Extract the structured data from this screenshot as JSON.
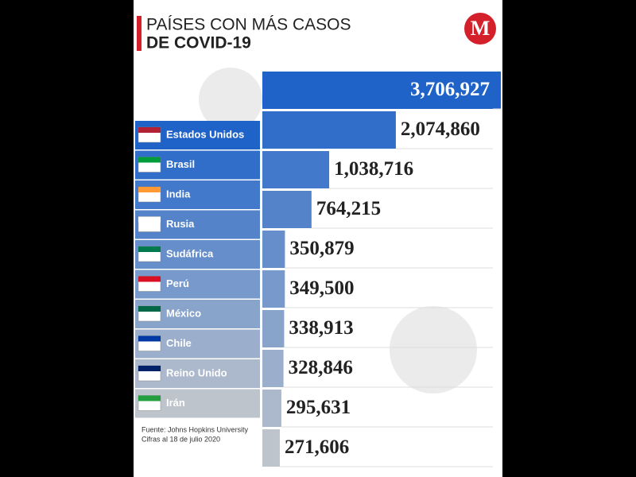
{
  "chart_data": {
    "type": "bar",
    "orientation": "horizontal",
    "title_lines": [
      "PAÍSES CON MÁS CASOS",
      "DE COVID-19"
    ],
    "logo": "M",
    "categories": [
      "Estados Unidos",
      "Brasil",
      "India",
      "Rusia",
      "Sudáfrica",
      "Perú",
      "México",
      "Chile",
      "Reino Unido",
      "Irán"
    ],
    "values": [
      3706927,
      2074860,
      1038716,
      764215,
      350879,
      349500,
      338913,
      328846,
      295631,
      271606
    ],
    "value_labels": [
      "3,706,927",
      "2,074,860",
      "1,038,716",
      "764,215",
      "350,879",
      "349,500",
      "338,913",
      "328,846",
      "295,631",
      "271,606"
    ],
    "color": "#1f63c9",
    "source_lines": [
      "Fuente: Johns Hopkins University",
      "Cifras al 18 de julio 2020"
    ]
  }
}
